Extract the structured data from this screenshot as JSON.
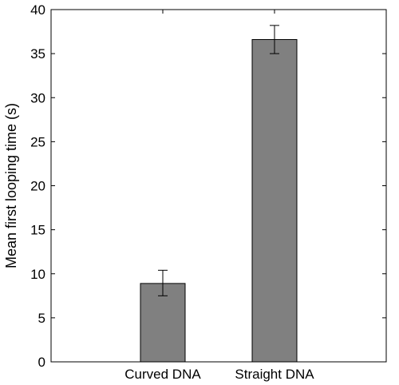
{
  "chart_data": {
    "type": "bar",
    "categories": [
      "Curved DNA",
      "Straight DNA"
    ],
    "values": [
      8.9,
      36.6
    ],
    "error_low": [
      7.5,
      35.0
    ],
    "error_high": [
      10.4,
      38.2
    ],
    "ylabel": "Mean first looping time (s)",
    "xlabel": "",
    "title": "",
    "ylim": [
      0,
      40
    ],
    "yticks": [
      0,
      5,
      10,
      15,
      20,
      25,
      30,
      35,
      40
    ],
    "xlim": [
      0,
      3
    ],
    "bar_color": "#808080",
    "grid": false
  }
}
